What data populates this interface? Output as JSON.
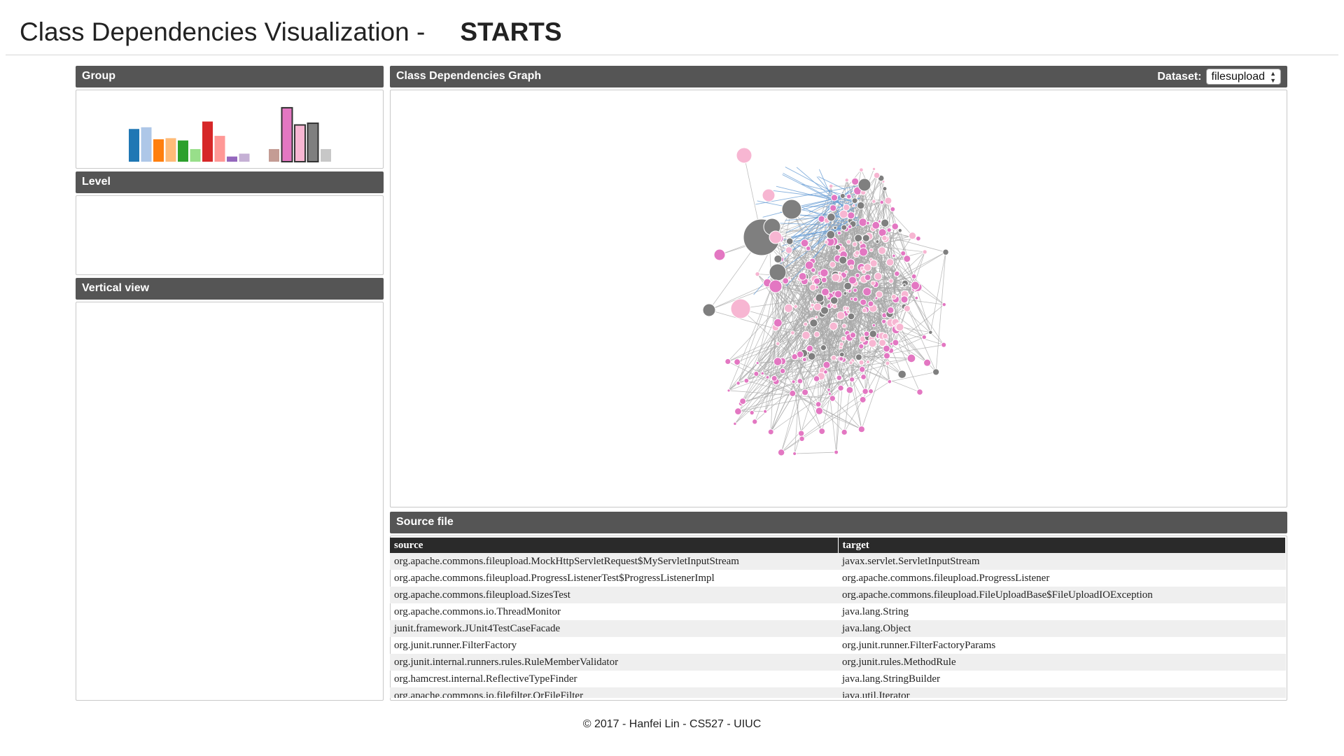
{
  "header": {
    "app_title": "Class Dependencies Visualization -",
    "app_name": "STARTS"
  },
  "panels": {
    "group_title": "Group",
    "level_title": "Level",
    "vertical_title": "Vertical view",
    "graph_title": "Class Dependencies Graph",
    "source_title": "Source file"
  },
  "dataset": {
    "label": "Dataset:",
    "selected": "filesupload"
  },
  "group_chart": {
    "type": "bar",
    "values": [
      0.57,
      0.6,
      0.39,
      0.41,
      0.37,
      0.22,
      0.7,
      0.45,
      0.09,
      0.14,
      0.22,
      0.94,
      0.64,
      0.67,
      0.22
    ],
    "colors": [
      "#1f77b4",
      "#aec7e8",
      "#ff7f0e",
      "#ffbb78",
      "#2ca02c",
      "#98df8a",
      "#d62728",
      "#ff9896",
      "#9467bd",
      "#c5b0d5",
      "#c49c94",
      "#e377c2",
      "#f7b6d2",
      "#7f7f7f",
      "#c7c7c7"
    ],
    "selected_indices": [
      11,
      12,
      13
    ]
  },
  "graph": {
    "edge_color": "#a8a8a8",
    "highlight_edge_color": "#6a9fd6",
    "node_colors": [
      "#e377c2",
      "#f7b6d2",
      "#7f7f7f"
    ]
  },
  "table": {
    "columns": [
      "source",
      "target"
    ],
    "rows": [
      [
        "org.apache.commons.fileupload.MockHttpServletRequest$MyServletInputStream",
        "javax.servlet.ServletInputStream"
      ],
      [
        "org.apache.commons.fileupload.ProgressListenerTest$ProgressListenerImpl",
        "org.apache.commons.fileupload.ProgressListener"
      ],
      [
        "org.apache.commons.fileupload.SizesTest",
        "org.apache.commons.fileupload.FileUploadBase$FileUploadIOException"
      ],
      [
        "org.apache.commons.io.ThreadMonitor",
        "java.lang.String"
      ],
      [
        "junit.framework.JUnit4TestCaseFacade",
        "java.lang.Object"
      ],
      [
        "org.junit.runner.FilterFactory",
        "org.junit.runner.FilterFactoryParams"
      ],
      [
        "org.junit.internal.runners.rules.RuleMemberValidator",
        "org.junit.rules.MethodRule"
      ],
      [
        "org.hamcrest.internal.ReflectiveTypeFinder",
        "java.lang.StringBuilder"
      ],
      [
        "org.apache.commons.io.filefilter.OrFileFilter",
        "java.util.Iterator"
      ]
    ]
  },
  "footer": {
    "text": "© 2017 - Hanfei Lin - CS527 - UIUC"
  }
}
